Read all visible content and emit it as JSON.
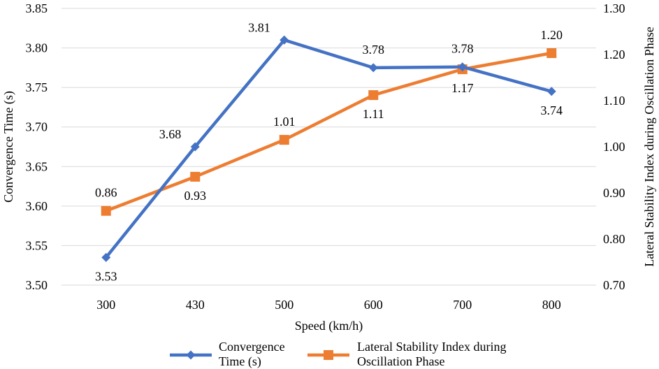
{
  "chart_data": {
    "type": "line",
    "x_label": "Speed (km/h)",
    "y_left_label": "Convergence Time (s)",
    "y_right_label": "Lateral Stability Index during Oscillation Phase",
    "categories": [
      "300",
      "430",
      "500",
      "600",
      "700",
      "800"
    ],
    "y_left": {
      "range": [
        3.5,
        3.85
      ],
      "ticks": [
        "3.50",
        "3.55",
        "3.60",
        "3.65",
        "3.70",
        "3.75",
        "3.80",
        "3.85"
      ],
      "gridlines": true
    },
    "y_right": {
      "range": [
        0.7,
        1.3
      ],
      "ticks": [
        "0.70",
        "0.80",
        "0.90",
        "1.00",
        "1.10",
        "1.20",
        "1.30"
      ]
    },
    "series": [
      {
        "name": "Convergence Time (s)",
        "legend_lines": [
          "Convergence",
          "Time (s)"
        ],
        "axis": "left",
        "color": "#4472C4",
        "marker": "diamond",
        "values": [
          3.535,
          3.675,
          3.81,
          3.775,
          3.776,
          3.745
        ],
        "labels": [
          "3.53",
          "3.68",
          "3.81",
          "3.78",
          "3.78",
          "3.74"
        ],
        "label_positions": [
          "below",
          "left-above",
          "left-above",
          "above",
          "above",
          "below"
        ]
      },
      {
        "name": "Lateral Stability Index during Oscillation Phase",
        "legend_lines": [
          "Lateral Stability Index during",
          "Oscillation Phase"
        ],
        "axis": "right",
        "color": "#ED7D31",
        "marker": "square",
        "values": [
          0.861,
          0.935,
          1.015,
          1.112,
          1.168,
          1.203
        ],
        "labels": [
          "0.86",
          "0.93",
          "1.01",
          "1.11",
          "1.17",
          "1.20"
        ],
        "label_positions": [
          "above",
          "below",
          "above",
          "below",
          "below",
          "above"
        ]
      }
    ],
    "legend_position": "bottom"
  }
}
